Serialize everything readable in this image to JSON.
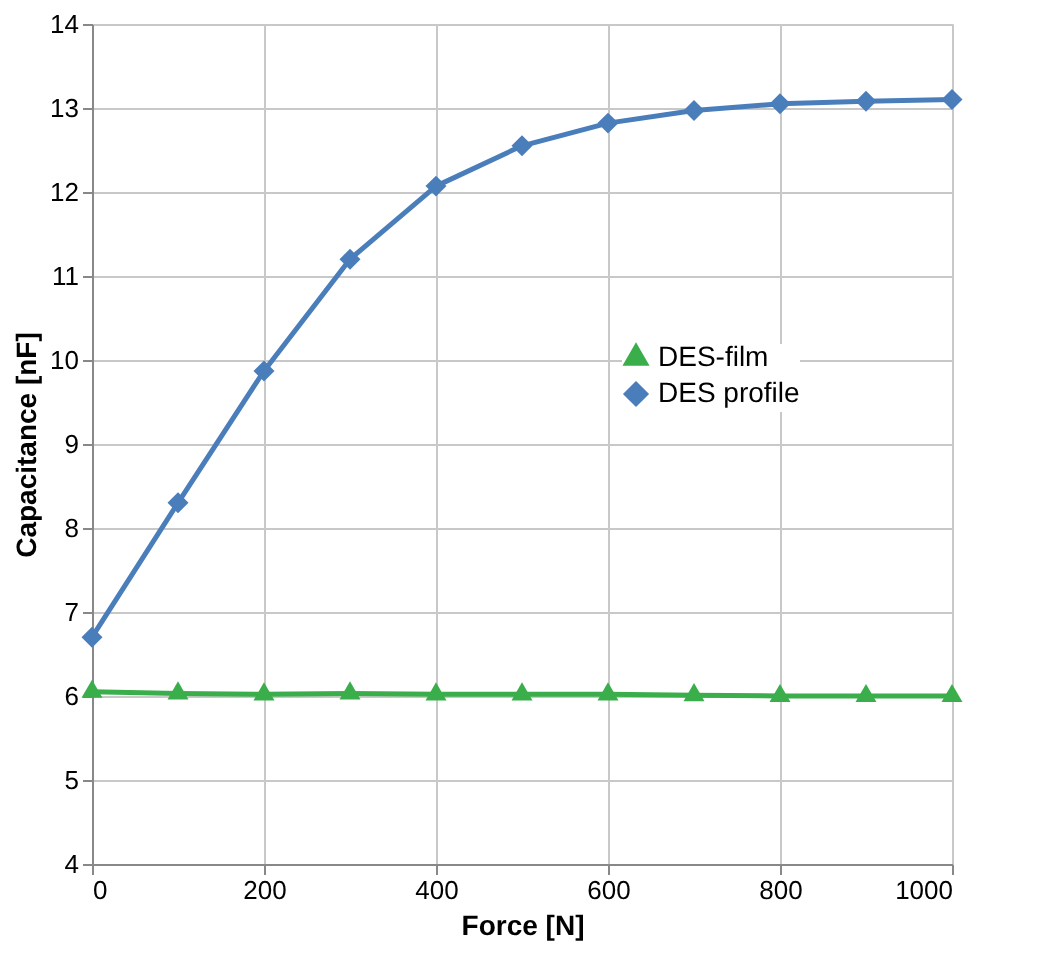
{
  "chart_data": {
    "type": "line",
    "xlabel": "Force [N]",
    "ylabel": "Capacitance  [nF]",
    "x": [
      0,
      100,
      200,
      300,
      400,
      500,
      600,
      700,
      800,
      900,
      1000
    ],
    "series": [
      {
        "name": "DES-film",
        "color": "#3aae4a",
        "marker": "triangle",
        "values": [
          6.05,
          6.03,
          6.02,
          6.03,
          6.02,
          6.02,
          6.02,
          6.01,
          6.0,
          6.0,
          6.0
        ]
      },
      {
        "name": "DES profile",
        "color": "#4a7ebb",
        "marker": "diamond",
        "values": [
          6.7,
          8.3,
          9.87,
          11.2,
          12.07,
          12.55,
          12.82,
          12.97,
          13.05,
          13.08,
          13.1
        ]
      }
    ],
    "xlim": [
      0,
      1000
    ],
    "xticks": [
      0,
      200,
      400,
      600,
      800,
      1000
    ],
    "ylim": [
      4,
      14
    ],
    "yticks": [
      4,
      5,
      6,
      7,
      8,
      9,
      10,
      11,
      12,
      13,
      14
    ],
    "grid": true,
    "legend": "right",
    "line_style": "solid"
  }
}
